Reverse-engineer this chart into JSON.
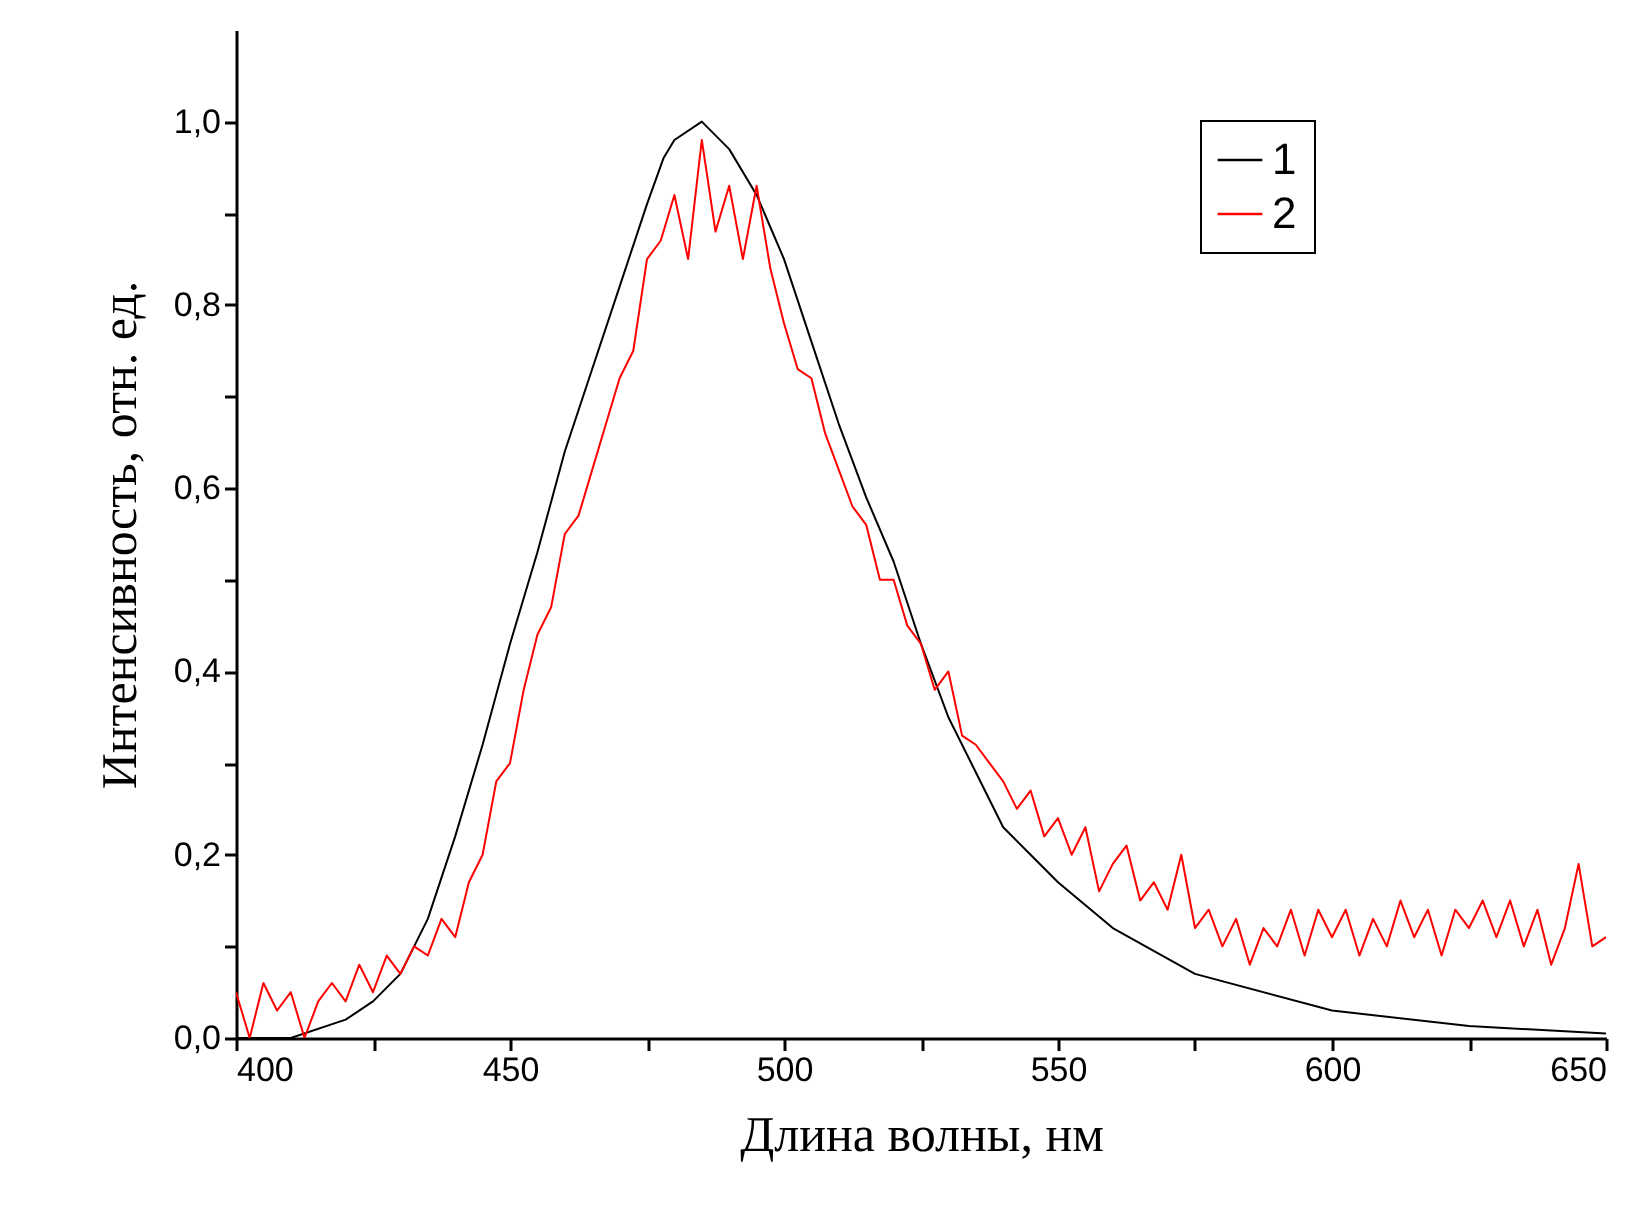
{
  "chart_data": {
    "type": "line",
    "xlabel": "Длина волны, нм",
    "ylabel": "Интенсивность, отн. ед.",
    "xlim": [
      400,
      650
    ],
    "ylim": [
      0,
      1.1
    ],
    "xticks": [
      400,
      {
        "value": 425,
        "label": null
      },
      450,
      {
        "value": 475,
        "label": null
      },
      500,
      {
        "value": 525,
        "label": null
      },
      550,
      {
        "value": 575,
        "label": null
      },
      600,
      {
        "value": 625,
        "label": null
      },
      650
    ],
    "yticks": [
      {
        "value": 0,
        "label": "0,0"
      },
      {
        "value": 0.1,
        "label": null
      },
      {
        "value": 0.2,
        "label": "0,2"
      },
      {
        "value": 0.3,
        "label": null
      },
      {
        "value": 0.4,
        "label": "0,4"
      },
      {
        "value": 0.5,
        "label": null
      },
      {
        "value": 0.6,
        "label": "0,6"
      },
      {
        "value": 0.7,
        "label": null
      },
      {
        "value": 0.8,
        "label": "0,8"
      },
      {
        "value": 0.9,
        "label": null
      },
      {
        "value": 1.0,
        "label": "1,0"
      }
    ],
    "legend": "top right",
    "grid": false,
    "marker": "none",
    "line_style": "solid",
    "series": [
      {
        "name": "1",
        "color": "#000000",
        "x": [
          400,
          410,
          420,
          425,
          430,
          435,
          440,
          445,
          450,
          455,
          460,
          465,
          470,
          475,
          478,
          480,
          485,
          490,
          495,
          500,
          505,
          510,
          515,
          520,
          525,
          530,
          535,
          540,
          545,
          550,
          560,
          575,
          600,
          625,
          650
        ],
        "values": [
          0.0,
          0.0,
          0.02,
          0.04,
          0.07,
          0.13,
          0.22,
          0.32,
          0.43,
          0.53,
          0.64,
          0.73,
          0.82,
          0.91,
          0.96,
          0.98,
          1.0,
          0.97,
          0.92,
          0.85,
          0.76,
          0.67,
          0.59,
          0.52,
          0.43,
          0.35,
          0.29,
          0.23,
          0.2,
          0.17,
          0.12,
          0.07,
          0.03,
          0.013,
          0.005
        ]
      },
      {
        "name": "2",
        "color": "#ff0000",
        "x": [
          400,
          402.5,
          405,
          407.5,
          410,
          412.5,
          415,
          417.5,
          420,
          422.5,
          425,
          427.5,
          430,
          432.5,
          435,
          437.5,
          440,
          442.5,
          445,
          447.5,
          450,
          452.5,
          455,
          457.5,
          460,
          462.5,
          465,
          467.5,
          470,
          472.5,
          475,
          477.5,
          480,
          482.5,
          485,
          487.5,
          490,
          492.5,
          495,
          497.5,
          500,
          502.5,
          505,
          507.5,
          510,
          512.5,
          515,
          517.5,
          520,
          522.5,
          525,
          527.5,
          530,
          532.5,
          535,
          537.5,
          540,
          542.5,
          545,
          547.5,
          550,
          552.5,
          555,
          557.5,
          560,
          562.5,
          565,
          567.5,
          570,
          572.5,
          575,
          577.5,
          580,
          582.5,
          585,
          587.5,
          590,
          592.5,
          595,
          597.5,
          600,
          602.5,
          605,
          607.5,
          610,
          612.5,
          615,
          617.5,
          620,
          622.5,
          625,
          627.5,
          630,
          632.5,
          635,
          637.5,
          640,
          642.5,
          645,
          647.5,
          650
        ],
        "values": [
          0.05,
          0.0,
          0.06,
          0.03,
          0.05,
          0.0,
          0.04,
          0.06,
          0.04,
          0.08,
          0.05,
          0.09,
          0.07,
          0.1,
          0.09,
          0.13,
          0.11,
          0.17,
          0.2,
          0.28,
          0.3,
          0.38,
          0.44,
          0.47,
          0.55,
          0.57,
          0.62,
          0.67,
          0.72,
          0.75,
          0.85,
          0.87,
          0.92,
          0.85,
          0.98,
          0.88,
          0.93,
          0.85,
          0.93,
          0.84,
          0.78,
          0.73,
          0.72,
          0.66,
          0.62,
          0.58,
          0.56,
          0.5,
          0.5,
          0.45,
          0.43,
          0.38,
          0.4,
          0.33,
          0.32,
          0.3,
          0.28,
          0.25,
          0.27,
          0.22,
          0.24,
          0.2,
          0.23,
          0.16,
          0.19,
          0.21,
          0.15,
          0.17,
          0.14,
          0.2,
          0.12,
          0.14,
          0.1,
          0.13,
          0.08,
          0.12,
          0.1,
          0.14,
          0.09,
          0.14,
          0.11,
          0.14,
          0.09,
          0.13,
          0.1,
          0.15,
          0.11,
          0.14,
          0.09,
          0.14,
          0.12,
          0.15,
          0.11,
          0.15,
          0.1,
          0.14,
          0.08,
          0.12,
          0.19,
          0.1,
          0.11
        ]
      }
    ]
  }
}
